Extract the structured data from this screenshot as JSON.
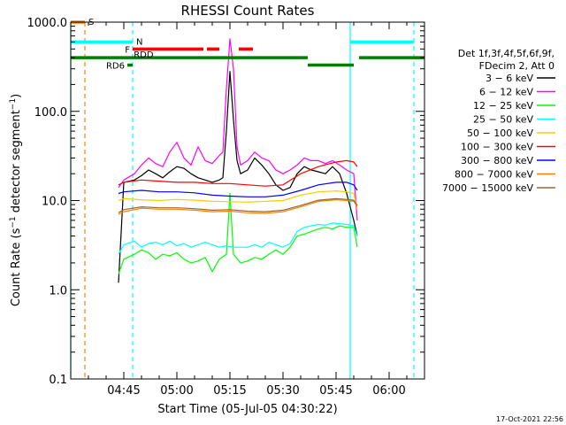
{
  "chart_data": {
    "type": "line",
    "title": "RHESSI Count Rates",
    "xlabel": "Start Time (05-Jul-05 04:30:22)",
    "ylabel": "Count Rate (s^-1 detector segment^-1)",
    "ylabel_main": "Count Rate (s",
    "ylabel_sup1": "−1",
    "ylabel_mid": " detector segment",
    "ylabel_sup2": "−1",
    "ylabel_end": ")",
    "y_scale": "log",
    "ylim": [
      0.1,
      1000
    ],
    "xlim_minutes_after_0430": [
      0,
      100
    ],
    "x_ticks": [
      {
        "label": "04:45",
        "minute": 15
      },
      {
        "label": "05:00",
        "minute": 30
      },
      {
        "label": "05:15",
        "minute": 45
      },
      {
        "label": "05:30",
        "minute": 60
      },
      {
        "label": "05:45",
        "minute": 75
      },
      {
        "label": "06:00",
        "minute": 90
      }
    ],
    "y_ticks": [
      {
        "label": "1000.0",
        "value": 1000
      },
      {
        "label": "100.0",
        "value": 100
      },
      {
        "label": "10.0",
        "value": 10
      },
      {
        "label": "1.0",
        "value": 1
      },
      {
        "label": "0.1",
        "value": 0.1
      }
    ],
    "legend": {
      "position": "right",
      "header": [
        "Det 1f,3f,4f,5f,6f,9f,",
        "FDecim 2, Att 0"
      ],
      "entries": [
        {
          "label": "3 − 6 keV",
          "color": "#000000"
        },
        {
          "label": "6 − 12 keV",
          "color": "#ff00ff"
        },
        {
          "label": "12 − 25 keV",
          "color": "#00ff00"
        },
        {
          "label": "25 − 50 keV",
          "color": "#00ffff"
        },
        {
          "label": "50 − 100 keV",
          "color": "#ffcc00"
        },
        {
          "label": "100 − 300 keV",
          "color": "#ff0000"
        },
        {
          "label": "300 − 800 keV",
          "color": "#0000ff"
        },
        {
          "label": "800 − 7000 keV",
          "color": "#ff8000"
        },
        {
          "label": "7000 − 15000 keV",
          "color": "#996633"
        }
      ]
    },
    "series": [
      {
        "name": "3 − 6 keV",
        "color": "#000000",
        "x": [
          13.5,
          15,
          18,
          20,
          22,
          24,
          26,
          28,
          30,
          32,
          34,
          36,
          38,
          40,
          42,
          43,
          44,
          45,
          46,
          47,
          48,
          50,
          52,
          54,
          56,
          58,
          60,
          62,
          64,
          66,
          68,
          70,
          72,
          74,
          76,
          78,
          80,
          81
        ],
        "y": [
          1.2,
          16,
          17,
          19,
          22,
          20,
          18,
          21,
          24,
          23,
          20,
          18,
          17,
          16,
          17,
          18,
          60,
          280,
          80,
          28,
          20,
          22,
          30,
          25,
          20,
          15,
          13,
          14,
          20,
          24,
          22,
          21,
          20,
          24,
          20,
          12,
          6,
          4
        ]
      },
      {
        "name": "6 − 12 keV",
        "color": "#ff00ff",
        "x": [
          13.5,
          15,
          18,
          20,
          22,
          24,
          26,
          28,
          30,
          32,
          34,
          36,
          38,
          40,
          42,
          43,
          44,
          45,
          46,
          47,
          48,
          50,
          52,
          54,
          56,
          58,
          60,
          62,
          64,
          66,
          68,
          70,
          72,
          74,
          76,
          78,
          80,
          81
        ],
        "y": [
          14,
          17,
          20,
          25,
          30,
          26,
          24,
          35,
          45,
          30,
          25,
          40,
          28,
          26,
          32,
          35,
          180,
          650,
          300,
          40,
          25,
          28,
          35,
          30,
          28,
          22,
          20,
          22,
          25,
          30,
          28,
          28,
          26,
          28,
          25,
          22,
          20,
          6
        ]
      },
      {
        "name": "12 − 25 keV",
        "color": "#00ff00",
        "x": [
          13.5,
          15,
          18,
          20,
          22,
          24,
          26,
          28,
          30,
          32,
          34,
          36,
          38,
          40,
          42,
          44,
          45,
          46,
          48,
          50,
          52,
          54,
          56,
          58,
          60,
          62,
          64,
          66,
          68,
          70,
          72,
          74,
          76,
          78,
          80,
          81
        ],
        "y": [
          1.5,
          2.2,
          2.5,
          2.8,
          2.6,
          2.2,
          2.5,
          2.4,
          2.6,
          2.2,
          2.0,
          2.1,
          2.3,
          1.6,
          2.2,
          2.5,
          12,
          2.5,
          2.0,
          2.1,
          2.3,
          2.2,
          2.5,
          2.8,
          2.5,
          3.0,
          4.0,
          4.2,
          4.5,
          4.8,
          5.0,
          4.8,
          5.2,
          5.0,
          5.0,
          3.0
        ]
      },
      {
        "name": "25 − 50 keV",
        "color": "#00ffff",
        "x": [
          13.5,
          15,
          18,
          20,
          22,
          24,
          26,
          28,
          30,
          32,
          34,
          36,
          38,
          40,
          42,
          44,
          46,
          48,
          50,
          52,
          54,
          56,
          58,
          60,
          62,
          64,
          66,
          68,
          70,
          72,
          74,
          76,
          78,
          80,
          81
        ],
        "y": [
          2.5,
          3.2,
          3.5,
          3.0,
          3.3,
          3.4,
          3.2,
          3.5,
          3.1,
          3.3,
          3.0,
          3.2,
          3.4,
          3.2,
          3.0,
          3.1,
          3.0,
          3.0,
          3.0,
          3.2,
          3.0,
          3.4,
          3.2,
          3.0,
          3.3,
          4.5,
          5.0,
          5.2,
          5.4,
          5.3,
          5.6,
          5.5,
          5.4,
          5.2,
          4.0
        ]
      },
      {
        "name": "50 − 100 keV",
        "color": "#ffcc00",
        "x": [
          13.5,
          15,
          20,
          25,
          30,
          35,
          40,
          45,
          50,
          55,
          60,
          65,
          70,
          75,
          78,
          80,
          81
        ],
        "y": [
          10,
          10.5,
          10.2,
          10.0,
          10.3,
          10.1,
          9.8,
          9.7,
          9.6,
          9.8,
          10.0,
          11.5,
          12.5,
          12.8,
          12.5,
          12.0,
          8
        ]
      },
      {
        "name": "100 − 300 keV",
        "color": "#ff0000",
        "x": [
          13.5,
          15,
          20,
          25,
          30,
          35,
          40,
          45,
          50,
          55,
          60,
          65,
          70,
          75,
          78,
          80,
          81
        ],
        "y": [
          15,
          16,
          17,
          16.5,
          16,
          16,
          15.5,
          15.5,
          15,
          14.5,
          15,
          20,
          24,
          27,
          28,
          27,
          24
        ]
      },
      {
        "name": "300 − 800 keV",
        "color": "#0000ff",
        "x": [
          13.5,
          15,
          20,
          25,
          30,
          35,
          40,
          45,
          50,
          55,
          60,
          65,
          70,
          75,
          78,
          80,
          81
        ],
        "y": [
          12,
          12.5,
          13,
          12.5,
          12.5,
          12.2,
          11.5,
          11.2,
          11,
          11,
          11.5,
          13,
          15,
          16,
          16,
          15,
          13
        ]
      },
      {
        "name": "800 − 7000 keV",
        "color": "#ff8000",
        "x": [
          13.5,
          15,
          20,
          25,
          30,
          35,
          40,
          45,
          50,
          55,
          60,
          65,
          70,
          75,
          78,
          80,
          81
        ],
        "y": [
          7,
          7.5,
          8.2,
          8.0,
          8.0,
          7.8,
          7.5,
          7.6,
          7.3,
          7.2,
          7.5,
          8.5,
          9.8,
          10.2,
          10.0,
          9.8,
          8.5
        ]
      },
      {
        "name": "7000 − 15000 keV",
        "color": "#996633",
        "x": [
          13.5,
          15,
          20,
          25,
          30,
          35,
          40,
          45,
          50,
          55,
          60,
          65,
          70,
          75,
          78,
          80,
          81
        ],
        "y": [
          7.3,
          7.9,
          8.5,
          8.3,
          8.3,
          8.1,
          7.8,
          7.9,
          7.6,
          7.5,
          7.8,
          8.8,
          10.1,
          10.5,
          10.3,
          10.1,
          8.8
        ]
      }
    ],
    "vertical_markers": [
      {
        "minute": 0,
        "color": "#00ffff",
        "style": "solid"
      },
      {
        "minute": 4,
        "color": "#ff8000",
        "style": "dashed"
      },
      {
        "minute": 17.5,
        "color": "#00ffff",
        "style": "dashed"
      },
      {
        "minute": 79,
        "color": "#00ffff",
        "style": "solid"
      },
      {
        "minute": 97,
        "color": "#00ffff",
        "style": "dashed"
      }
    ],
    "flag_bars": [
      {
        "label": "S",
        "color": "#ff8000",
        "segments": [
          [
            0,
            4
          ]
        ],
        "y": 1000
      },
      {
        "label": "N",
        "color": "#00ffff",
        "segments": [
          [
            0,
            17.5
          ],
          [
            79,
            97
          ]
        ],
        "y": 600
      },
      {
        "label": "F",
        "color": "#ff0000",
        "segments": [
          [
            17.5,
            37.5
          ],
          [
            38.5,
            42
          ],
          [
            47.5,
            51.5
          ]
        ],
        "y": 500
      },
      {
        "label": "RDD",
        "color": "#007f00",
        "segments": [
          [
            0,
            67
          ],
          [
            81.5,
            100
          ]
        ],
        "y": 400
      },
      {
        "label": "RD6",
        "color": "#007f00",
        "segments": [
          [
            16,
            17.5
          ],
          [
            67,
            80
          ]
        ],
        "y": 330
      }
    ]
  },
  "footer_timestamp": "17-Oct-2021 22:56"
}
